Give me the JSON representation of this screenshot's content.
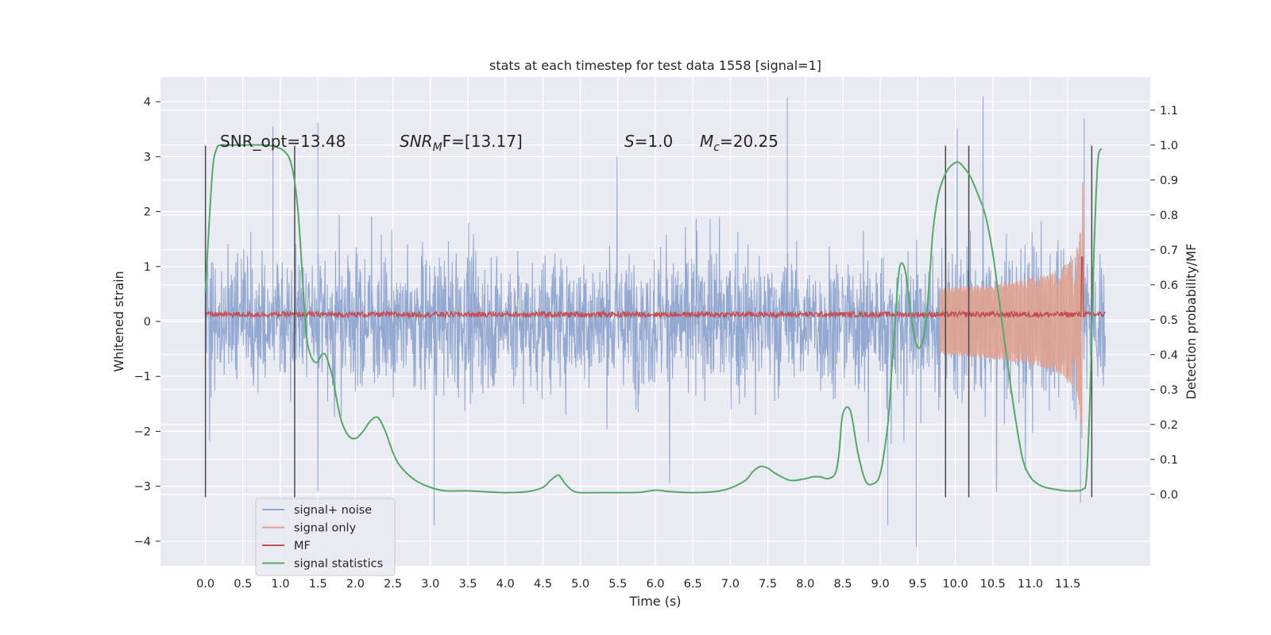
{
  "chart_data": {
    "type": "line",
    "title": "stats at each timestep for test data 1558 [signal=1]",
    "xlabel": "Time (s)",
    "ylabel": "Whitened strain",
    "y2label": "Detection probability/MF",
    "xlim": [
      -0.6,
      12.6
    ],
    "ylim": [
      -4.45,
      4.45
    ],
    "y2lim": [
      -0.205,
      1.195
    ],
    "x_ticks": [
      "0.0",
      "0.5",
      "1.0",
      "1.5",
      "2.0",
      "2.5",
      "3.0",
      "3.5",
      "4.0",
      "4.5",
      "5.0",
      "5.5",
      "6.0",
      "6.5",
      "7.0",
      "7.5",
      "8.0",
      "8.5",
      "9.0",
      "9.5",
      "10.0",
      "10.5",
      "11.0",
      "11.5"
    ],
    "y_ticks": [
      "4",
      "3",
      "2",
      "1",
      "0",
      "−1",
      "−2",
      "−3",
      "−4"
    ],
    "y2_ticks": [
      "1.1",
      "1.0",
      "0.9",
      "0.8",
      "0.7",
      "0.6",
      "0.5",
      "0.4",
      "0.3",
      "0.2",
      "0.1",
      "0.0"
    ],
    "grid": true,
    "legend_placement": "lower-left",
    "annotations": {
      "snr_opt": "SNR_opt=13.48",
      "snr_mf_sym": "SNR",
      "snr_mf_sub": "M",
      "snr_mf_rest": "F=[13.17]",
      "s_sym": "S",
      "s_rest": "=1.0",
      "mc_sym": "M",
      "mc_sub": "c",
      "mc_rest": "=20.25"
    },
    "vertical_lines_x": [
      0.0,
      1.19,
      9.87,
      10.18,
      11.82
    ],
    "vertical_lines_range": [
      -3.2,
      3.2
    ],
    "series": [
      {
        "name": "signal+ noise",
        "color": "#8fa5cf",
        "axis": "left",
        "x_range": [
          0.0,
          12.0
        ],
        "envelope_typical": [
          -1.9,
          1.9
        ],
        "envelope_peak": [
          -4.1,
          4.1
        ],
        "peak_points": [
          [
            0.9,
            3.55
          ],
          [
            1.5,
            3.62
          ],
          [
            7.76,
            4.07
          ],
          [
            11.72,
            3.7
          ],
          [
            3.05,
            -3.7
          ],
          [
            9.48,
            -4.1
          ],
          [
            9.1,
            -3.7
          ],
          [
            11.67,
            -3.3
          ]
        ]
      },
      {
        "name": "signal only",
        "color": "#e0a290",
        "axis": "left",
        "chirp_start": 9.8,
        "merger": 11.7,
        "peak_amplitude": 2.85
      },
      {
        "name": "MF",
        "color": "#c44e52",
        "axis": "right",
        "baseline": [
          0.495,
          0.53
        ],
        "spike": [
          11.69,
          0.68
        ]
      },
      {
        "name": "signal statistics",
        "color": "#55a868",
        "axis": "right",
        "x": [
          0.0,
          0.05,
          0.1,
          0.15,
          0.2,
          0.3,
          0.5,
          0.8,
          1.0,
          1.1,
          1.15,
          1.2,
          1.25,
          1.3,
          1.35,
          1.4,
          1.45,
          1.5,
          1.55,
          1.6,
          1.65,
          1.7,
          1.8,
          1.9,
          2.0,
          2.1,
          2.2,
          2.3,
          2.4,
          2.5,
          2.6,
          2.8,
          3.0,
          3.2,
          3.5,
          4.0,
          4.3,
          4.5,
          4.6,
          4.7,
          4.75,
          4.8,
          4.9,
          5.0,
          5.2,
          5.5,
          5.8,
          6.0,
          6.2,
          6.5,
          6.8,
          7.0,
          7.2,
          7.3,
          7.4,
          7.5,
          7.6,
          7.8,
          8.0,
          8.1,
          8.2,
          8.3,
          8.4,
          8.45,
          8.5,
          8.6,
          8.7,
          8.8,
          8.9,
          9.0,
          9.1,
          9.15,
          9.2,
          9.25,
          9.3,
          9.35,
          9.4,
          9.45,
          9.5,
          9.55,
          9.6,
          9.65,
          9.7,
          9.75,
          9.8,
          9.9,
          10.0,
          10.05,
          10.1,
          10.2,
          10.3,
          10.4,
          10.5,
          10.6,
          10.7,
          10.8,
          10.9,
          11.0,
          11.1,
          11.2,
          11.4,
          11.5,
          11.6,
          11.7,
          11.75,
          11.8,
          11.85,
          11.9,
          11.95
        ],
        "y": [
          0.58,
          0.78,
          0.94,
          0.99,
          1.0,
          1.0,
          1.0,
          1.0,
          0.99,
          0.97,
          0.94,
          0.88,
          0.77,
          0.6,
          0.45,
          0.4,
          0.38,
          0.38,
          0.4,
          0.4,
          0.37,
          0.33,
          0.22,
          0.17,
          0.16,
          0.18,
          0.21,
          0.22,
          0.18,
          0.12,
          0.08,
          0.04,
          0.02,
          0.01,
          0.01,
          0.005,
          0.008,
          0.02,
          0.04,
          0.055,
          0.045,
          0.03,
          0.01,
          0.005,
          0.005,
          0.005,
          0.006,
          0.012,
          0.008,
          0.005,
          0.008,
          0.018,
          0.04,
          0.065,
          0.08,
          0.075,
          0.06,
          0.04,
          0.045,
          0.05,
          0.05,
          0.045,
          0.06,
          0.12,
          0.23,
          0.24,
          0.12,
          0.04,
          0.03,
          0.06,
          0.2,
          0.35,
          0.5,
          0.64,
          0.66,
          0.62,
          0.53,
          0.46,
          0.42,
          0.43,
          0.48,
          0.6,
          0.75,
          0.83,
          0.88,
          0.93,
          0.95,
          0.95,
          0.94,
          0.91,
          0.86,
          0.8,
          0.69,
          0.53,
          0.37,
          0.22,
          0.1,
          0.05,
          0.03,
          0.02,
          0.012,
          0.01,
          0.01,
          0.015,
          0.05,
          0.3,
          0.7,
          0.95,
          0.99
        ]
      }
    ]
  }
}
